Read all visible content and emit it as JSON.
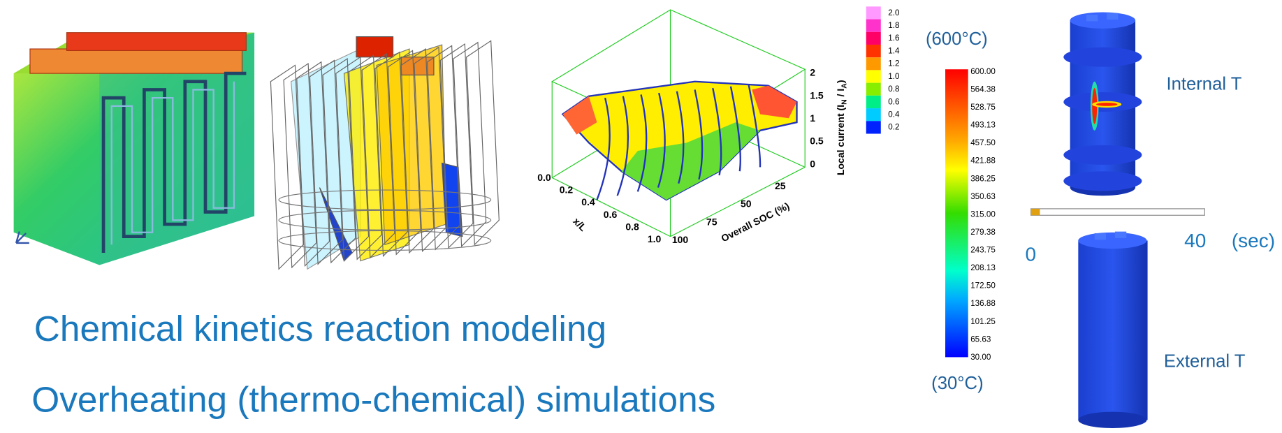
{
  "captions": [
    "Chemical kinetics reaction modeling",
    "Overheating (thermo-chemical) simulations"
  ],
  "current_plot": {
    "legend": [
      "2.0",
      "1.8",
      "1.6",
      "1.4",
      "1.2",
      "1.0",
      "0.8",
      "0.6",
      "0.4",
      "0.2"
    ],
    "x_label": "x/L",
    "x_ticks": [
      "0.0",
      "0.2",
      "0.4",
      "0.6",
      "0.8",
      "1.0"
    ],
    "soc_label": "Overall SOC (%)",
    "soc_ticks": [
      "25",
      "50",
      "75",
      "100"
    ],
    "z_label": {
      "prefix": "Local current (I",
      "sub1": "N",
      "mid": " / I",
      "sub2": "A",
      "suffix": ")"
    },
    "z_ticks": [
      "2",
      "1.5",
      "1",
      "0.5",
      "0"
    ]
  },
  "temperature": {
    "max_label": "(600°C)",
    "min_label": "(30°C)",
    "ticks": [
      "600.00",
      "564.38",
      "528.75",
      "493.13",
      "457.50",
      "421.88",
      "386.25",
      "350.63",
      "315.00",
      "279.38",
      "243.75",
      "208.13",
      "172.50",
      "136.88",
      "101.25",
      "65.63",
      "30.00"
    ],
    "time_start": "0",
    "time_end": "40",
    "time_unit": "(sec)",
    "internal_label": "Internal T",
    "external_label": "External T"
  }
}
